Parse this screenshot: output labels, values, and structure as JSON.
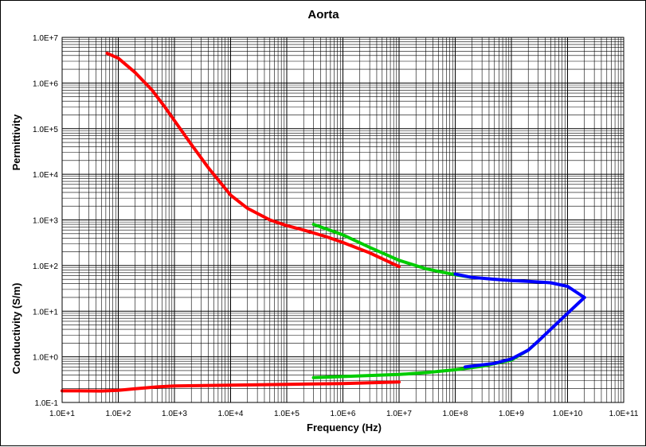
{
  "chart_data": {
    "type": "line",
    "title": "Aorta",
    "xlabel": "Frequency (Hz)",
    "ylabel_top": "Permittivity",
    "ylabel_bottom": "Conductivity (S/m)",
    "x_scale": "log",
    "y_scale": "log",
    "xlim": [
      10,
      100000000000
    ],
    "ylim": [
      0.1,
      10000000
    ],
    "grid": true,
    "legend": "none",
    "x_ticks": [
      "1.0E+1",
      "1.0E+2",
      "1.0E+3",
      "1.0E+4",
      "1.0E+5",
      "1.0E+6",
      "1.0E+7",
      "1.0E+8",
      "1.0E+9",
      "1.0E+10",
      "1.0E+11"
    ],
    "y_ticks": [
      "1.0E-1",
      "1.0E+0",
      "1.0E+1",
      "1.0E+2",
      "1.0E+3",
      "1.0E+4",
      "1.0E+5",
      "1.0E+6",
      "1.0E+7"
    ],
    "series": [
      {
        "color": "#ff0000",
        "x": [
          63,
          100,
          200,
          400,
          700,
          1000,
          2000,
          4000,
          7000,
          10000,
          20000,
          50000,
          100000,
          200000,
          500000,
          1000000,
          3000000,
          10000000
        ],
        "y": [
          4500000,
          3500000,
          1700000,
          700000,
          280000,
          150000,
          45000,
          14000,
          6000,
          3500,
          1800,
          1000,
          750,
          600,
          430,
          320,
          190,
          95
        ]
      },
      {
        "color": "#00cc00",
        "x": [
          300000,
          1000000,
          3000000,
          10000000,
          30000000,
          100000000,
          200000000
        ],
        "y": [
          800,
          470,
          250,
          130,
          85,
          63,
          55
        ]
      },
      {
        "color": "#0000ff",
        "x": [
          100000000,
          200000000,
          500000000,
          1000000000,
          2000000000,
          5000000000,
          10000000000,
          20000000000
        ],
        "y": [
          65,
          55,
          50,
          47,
          45,
          42,
          35,
          20
        ]
      },
      {
        "color": "#ff0000",
        "x": [
          10,
          20,
          50,
          100,
          200,
          500,
          1000,
          10000,
          100000,
          1000000,
          10000000
        ],
        "y": [
          0.18,
          0.18,
          0.178,
          0.185,
          0.2,
          0.22,
          0.23,
          0.24,
          0.25,
          0.26,
          0.28
        ]
      },
      {
        "color": "#00cc00",
        "x": [
          300000,
          1000000,
          3000000,
          10000000,
          30000000,
          100000000,
          300000000,
          1000000000,
          2000000000,
          3000000000
        ],
        "y": [
          0.35,
          0.37,
          0.39,
          0.41,
          0.45,
          0.52,
          0.62,
          0.85,
          1.4,
          2.2
        ]
      },
      {
        "color": "#0000ff",
        "x": [
          150000000,
          500000000,
          1000000000,
          2000000000,
          3000000000,
          5000000000,
          10000000000,
          20000000000
        ],
        "y": [
          0.6,
          0.72,
          0.9,
          1.4,
          2.2,
          4,
          9,
          20
        ]
      }
    ]
  }
}
